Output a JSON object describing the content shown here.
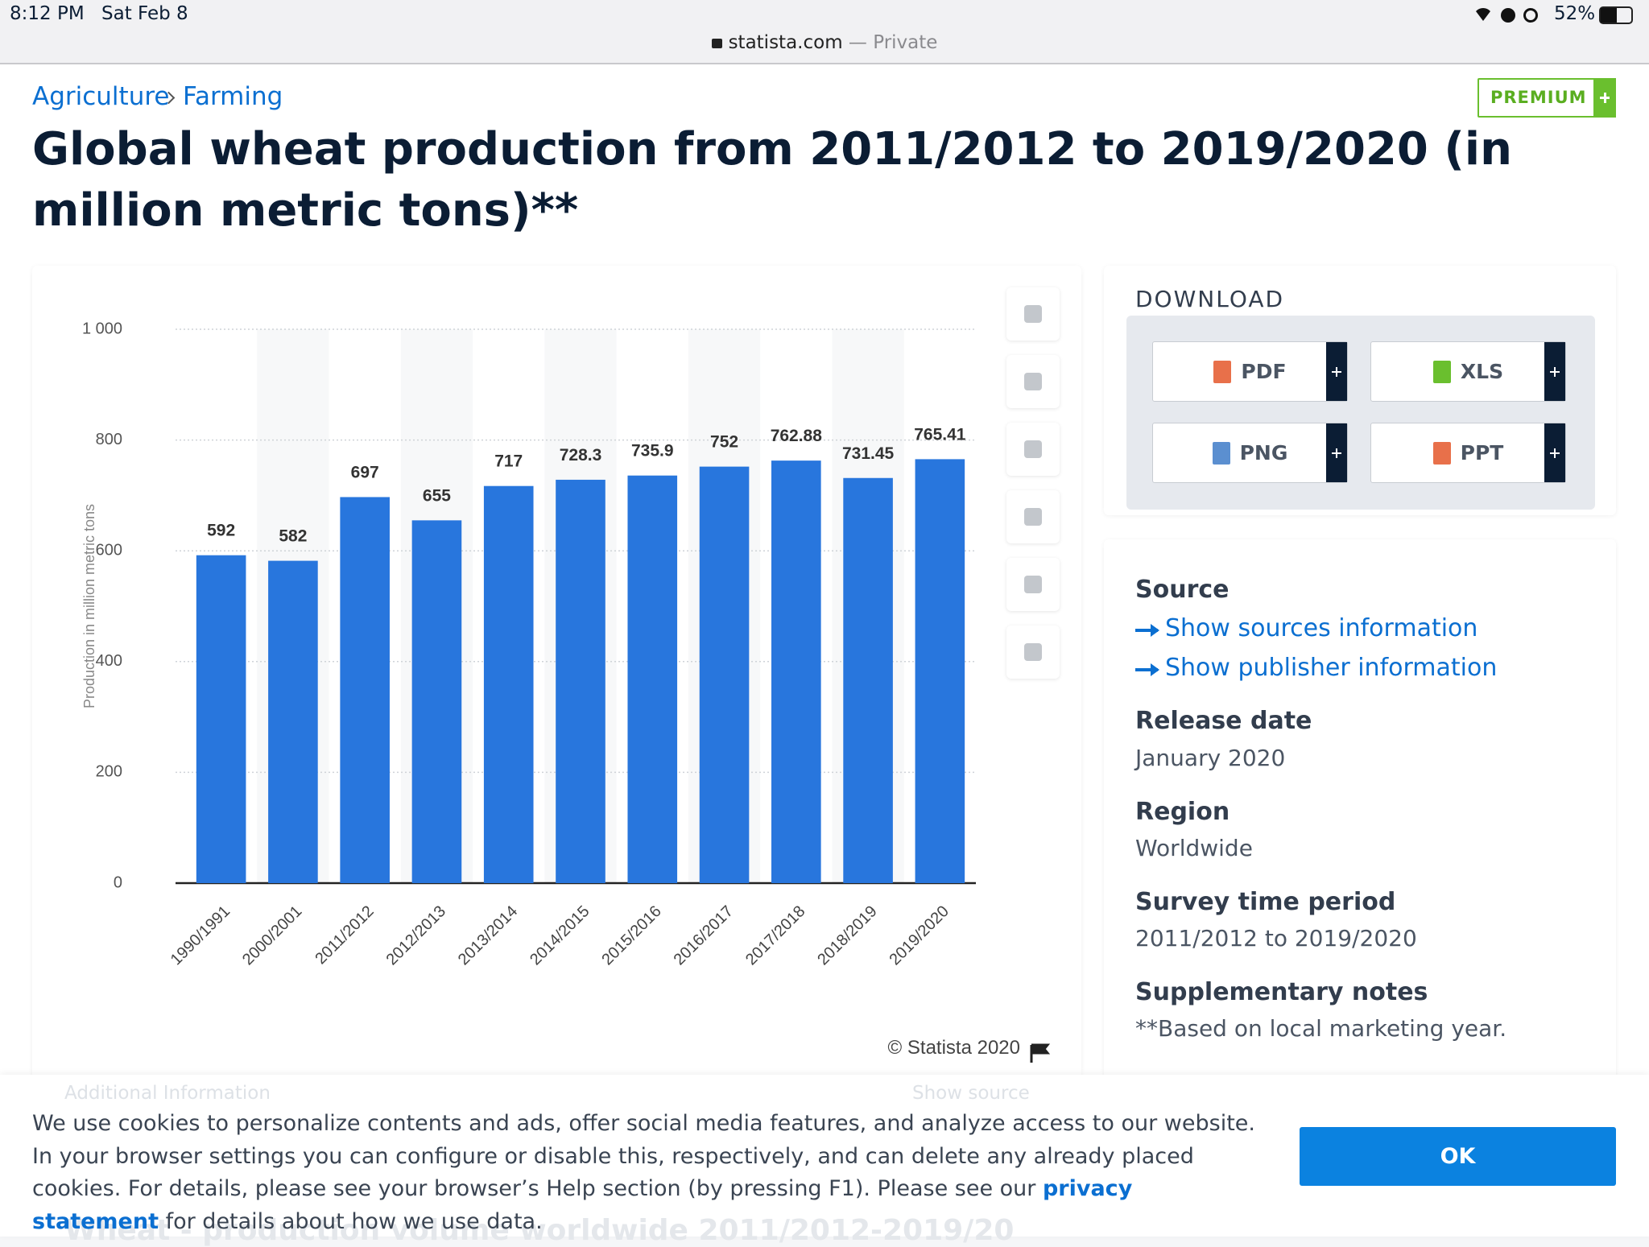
{
  "status_bar": {
    "time": "8:12 PM",
    "date": "Sat Feb 8",
    "battery": "52%"
  },
  "address_bar": {
    "domain": "statista.com",
    "mode": "— Private"
  },
  "breadcrumb": [
    "Agriculture",
    "Farming"
  ],
  "premium_button": "PREMIUM",
  "chart_data": {
    "type": "bar",
    "title": "Global wheat production from 2011/2012 to 2019/2020 (in million metric tons)**",
    "y_label": "Production in million metric tons",
    "categories": [
      "1990/1991",
      "2000/2001",
      "2011/2012",
      "2012/2013",
      "2013/2014",
      "2014/2015",
      "2015/2016",
      "2016/2017",
      "2017/2018",
      "2018/2019",
      "2019/2020"
    ],
    "values": [
      592,
      582,
      697,
      655,
      717,
      728.3,
      735.9,
      752,
      762.88,
      731.45,
      765.41
    ],
    "color": "#2876dd",
    "ylim": [
      0,
      1000
    ],
    "yticks": [
      0,
      200,
      400,
      600,
      800,
      {
        "value": 1000,
        "label": "1 000"
      }
    ],
    "grid": true,
    "credit": "© Statista 2020"
  },
  "download": {
    "title": "DOWNLOAD",
    "buttons": [
      "PDF",
      "XLS",
      "PNG",
      "PPT"
    ]
  },
  "details": {
    "source_heading": "Source",
    "source_links": [
      "Show sources information",
      "Show publisher information"
    ],
    "items": [
      {
        "heading": "Release date",
        "value": "January 2020"
      },
      {
        "heading": "Region",
        "value": "Worldwide"
      },
      {
        "heading": "Survey time period",
        "value": "2011/2012 to 2019/2020"
      },
      {
        "heading": "Supplementary notes",
        "value": "**Based on local marketing year."
      }
    ]
  },
  "faded": {
    "additional": "Additional Information",
    "show_source": "Show source",
    "next_title": "Wheat - production volume worldwide 2011/2012-2019/20"
  },
  "cookie_banner": {
    "text_before": "We use cookies to personalize contents and ads, offer social media features, and analyze access to our website. In your browser settings you can configure or disable this, respectively, and can delete any already placed cookies. For details, please see your browser’s Help section (by pressing F1). Please see our",
    "link": "privacy statement",
    "text_after": "for details about how we use data.",
    "button": "OK"
  }
}
